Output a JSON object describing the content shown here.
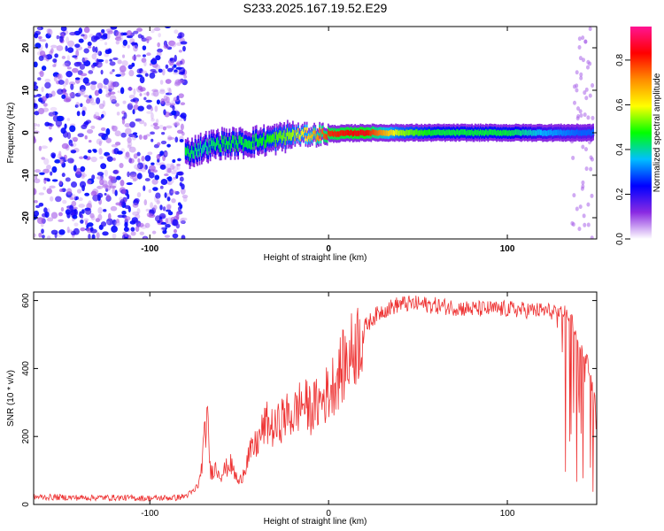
{
  "title": "S233.2025.167.19.52.E29",
  "chart_data": [
    {
      "type": "heatmap",
      "xlabel": "Height of straight line (km)",
      "ylabel": "Frequency (Hz)",
      "xlim": [
        -165,
        150
      ],
      "ylim": [
        -25,
        25
      ],
      "xticks": [
        -100,
        0,
        100
      ],
      "yticks": [
        -20,
        -10,
        0,
        10,
        20
      ],
      "colorbar": {
        "label": "Normalized spectral amplitude",
        "range": [
          0,
          0.95
        ],
        "ticks": [
          0.0,
          0.2,
          0.4,
          0.6,
          0.8
        ],
        "tick_labels": [
          "0.0",
          "0.2",
          "0.4",
          "0.6",
          "0.8"
        ],
        "colormap": [
          "#ffffff",
          "#8a2be2",
          "#0000ff",
          "#00bfff",
          "#00ff00",
          "#ffff00",
          "#ff8c00",
          "#ff0000",
          "#ff1493"
        ]
      },
      "ridge": {
        "x": [
          -80,
          -70,
          -60,
          -50,
          -40,
          -30,
          -20,
          -10,
          0,
          20,
          40,
          60,
          80,
          100,
          120,
          140,
          148
        ],
        "frequency": [
          -5,
          -3.5,
          -2.5,
          -2.5,
          -2,
          -1.5,
          -0.5,
          -0.5,
          -0.3,
          0,
          0,
          0,
          0,
          0,
          0,
          0,
          0
        ],
        "amplitude": [
          0.45,
          0.4,
          0.45,
          0.45,
          0.45,
          0.5,
          0.55,
          0.65,
          0.8,
          0.85,
          0.55,
          0.45,
          0.45,
          0.45,
          0.35,
          0.3,
          0.3
        ]
      },
      "noise_region_x": [
        -165,
        -80
      ],
      "noise_amplitude": 0.15
    },
    {
      "type": "line",
      "xlabel": "Height of straight line (km)",
      "ylabel": "SNR (10 * v/v)",
      "xlim": [
        -165,
        150
      ],
      "ylim": [
        0,
        625
      ],
      "xticks": [
        -100,
        0,
        100
      ],
      "yticks": [
        0,
        200,
        400,
        600
      ],
      "color": "#ee3333",
      "x": [
        -165,
        -140,
        -120,
        -100,
        -85,
        -80,
        -75,
        -72,
        -68,
        -66,
        -64,
        -60,
        -55,
        -50,
        -45,
        -40,
        -35,
        -30,
        -25,
        -20,
        -15,
        -10,
        -5,
        0,
        5,
        10,
        15,
        20,
        25,
        30,
        40,
        50,
        60,
        70,
        80,
        90,
        100,
        110,
        120,
        125,
        130,
        133,
        136,
        140,
        145,
        150
      ],
      "y": [
        22,
        20,
        20,
        18,
        20,
        25,
        40,
        70,
        260,
        90,
        110,
        90,
        120,
        60,
        140,
        180,
        240,
        220,
        260,
        260,
        300,
        280,
        300,
        330,
        380,
        420,
        470,
        520,
        550,
        570,
        590,
        590,
        585,
        580,
        575,
        575,
        575,
        572,
        570,
        568,
        566,
        565,
        550,
        470,
        420,
        270
      ]
    }
  ]
}
